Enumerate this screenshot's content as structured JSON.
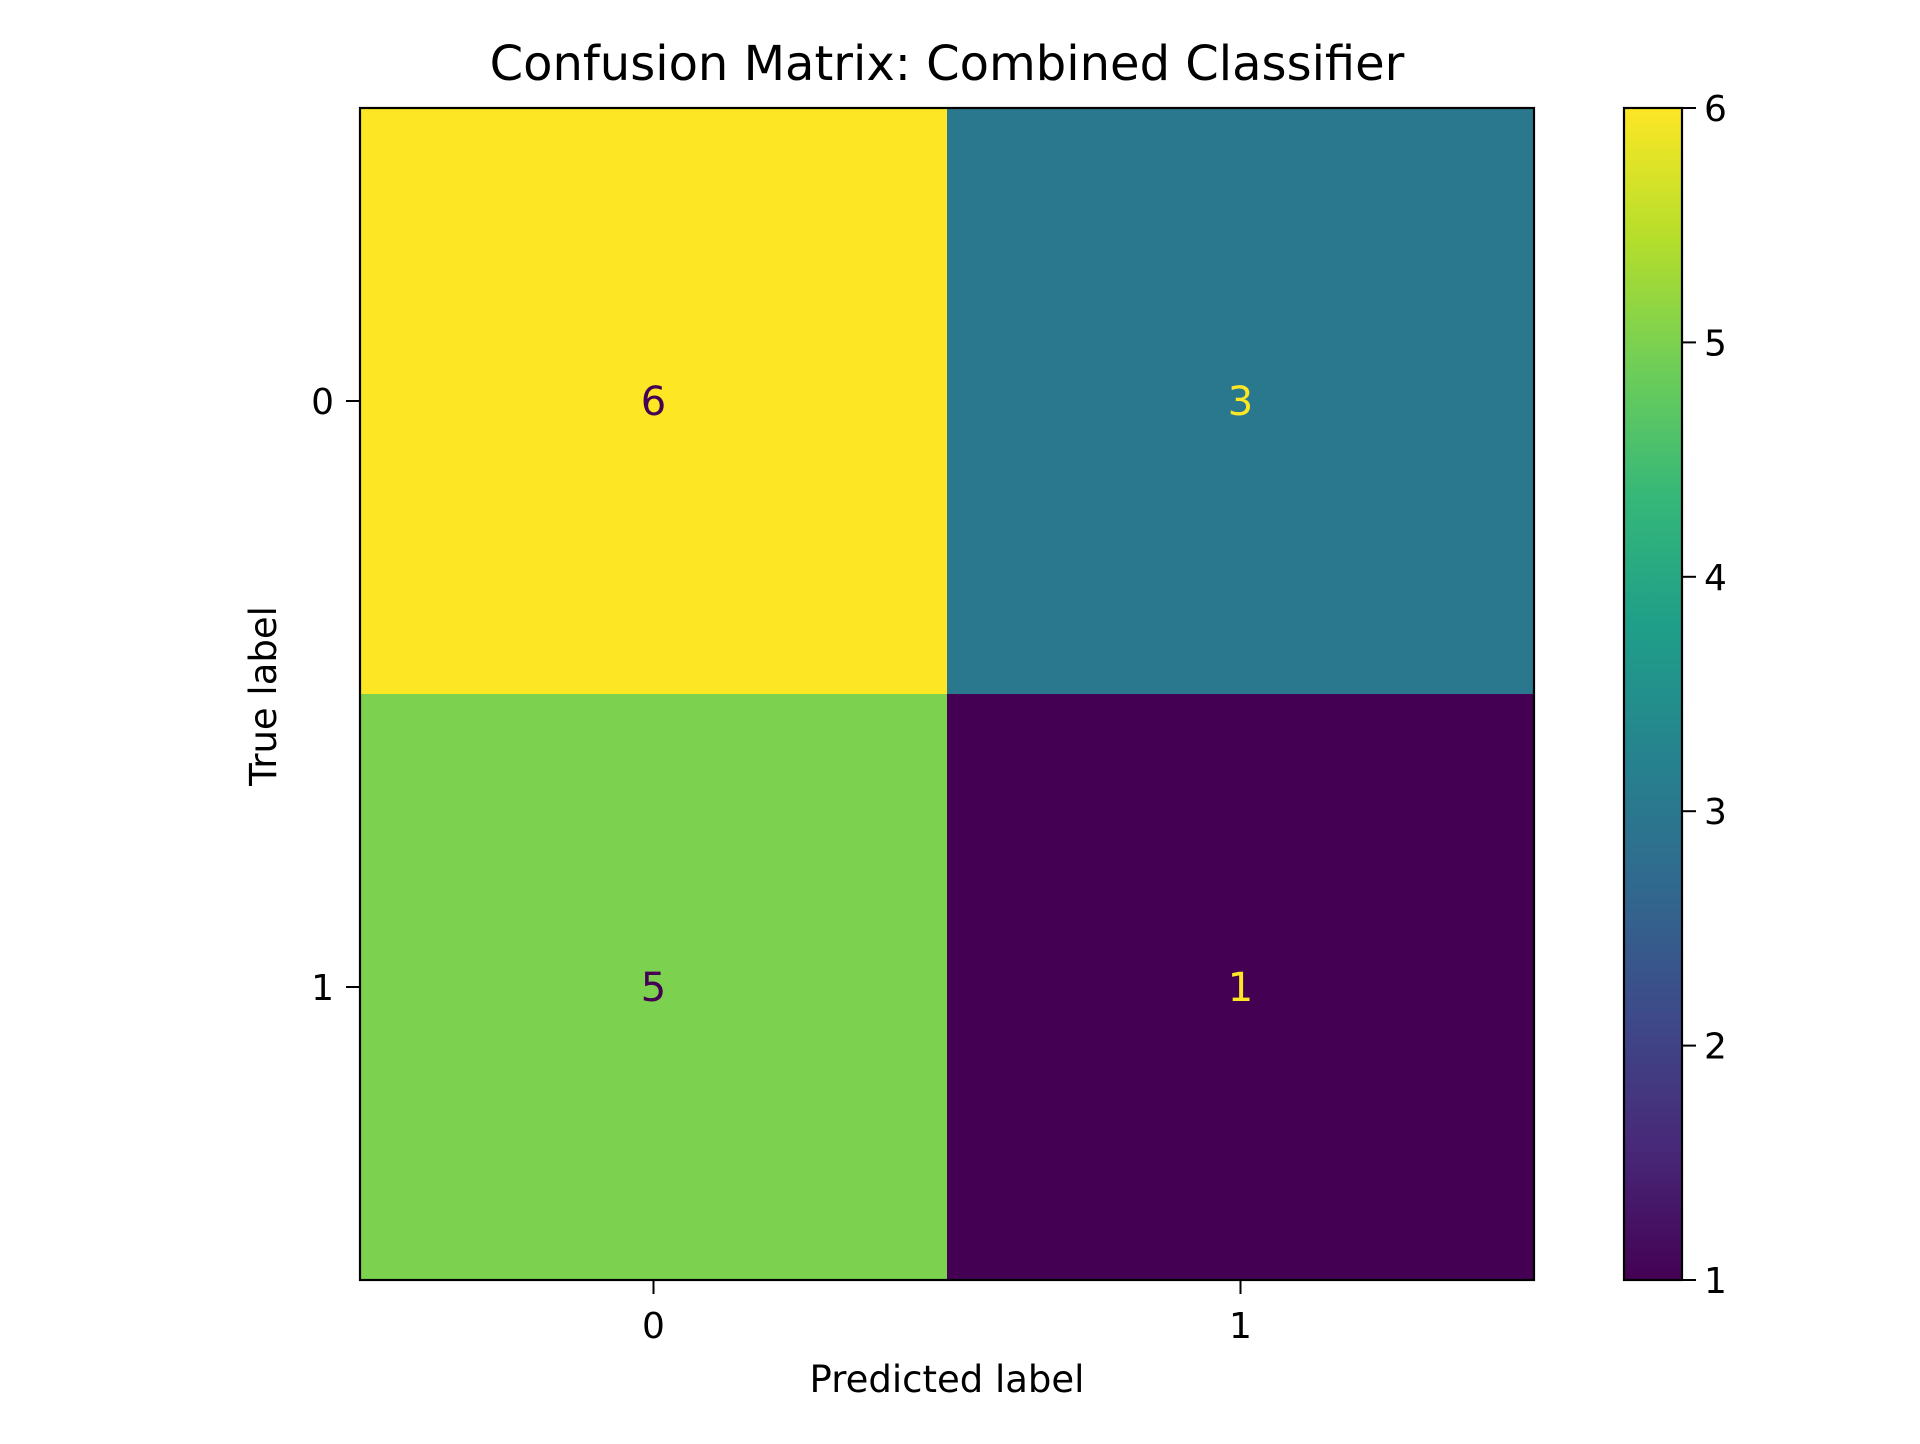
{
  "chart_data": {
    "type": "heatmap",
    "title": "Confusion Matrix: Combined Classifier",
    "xlabel": "Predicted label",
    "ylabel": "True label",
    "x_categories": [
      "0",
      "1"
    ],
    "y_categories": [
      "0",
      "1"
    ],
    "matrix": [
      [
        6,
        3
      ],
      [
        5,
        1
      ]
    ],
    "colormap": "viridis",
    "colorbar": {
      "min": 1,
      "max": 6,
      "ticks": [
        1,
        2,
        3,
        4,
        5,
        6
      ]
    }
  },
  "colors": {
    "viridis": [
      "#440154",
      "#482878",
      "#3e4989",
      "#31688e",
      "#26828e",
      "#1f9e89",
      "#35b779",
      "#6ece58",
      "#b5de2b",
      "#fde725"
    ],
    "text_on_dark": "#fde725",
    "text_on_light": "#440154"
  }
}
